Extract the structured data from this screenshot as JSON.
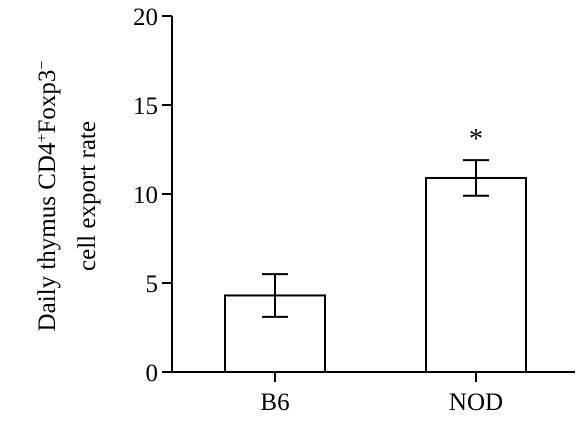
{
  "chart_data": {
    "type": "bar",
    "categories": [
      "B6",
      "NOD"
    ],
    "values": [
      4.3,
      10.9
    ],
    "error": [
      1.2,
      1.0
    ],
    "annotations": [
      "",
      "*"
    ],
    "ylabel_line1": {
      "main": "Daily thymus CD4",
      "sup1": "+",
      "mid": "Foxp3",
      "sup2": "−"
    },
    "ylabel_line2": "cell export rate",
    "ylim": [
      0,
      20
    ],
    "yticks": [
      0,
      5,
      10,
      15,
      20
    ],
    "grid": false,
    "bar_fill": "#ffffff",
    "bar_stroke": "#000000"
  }
}
